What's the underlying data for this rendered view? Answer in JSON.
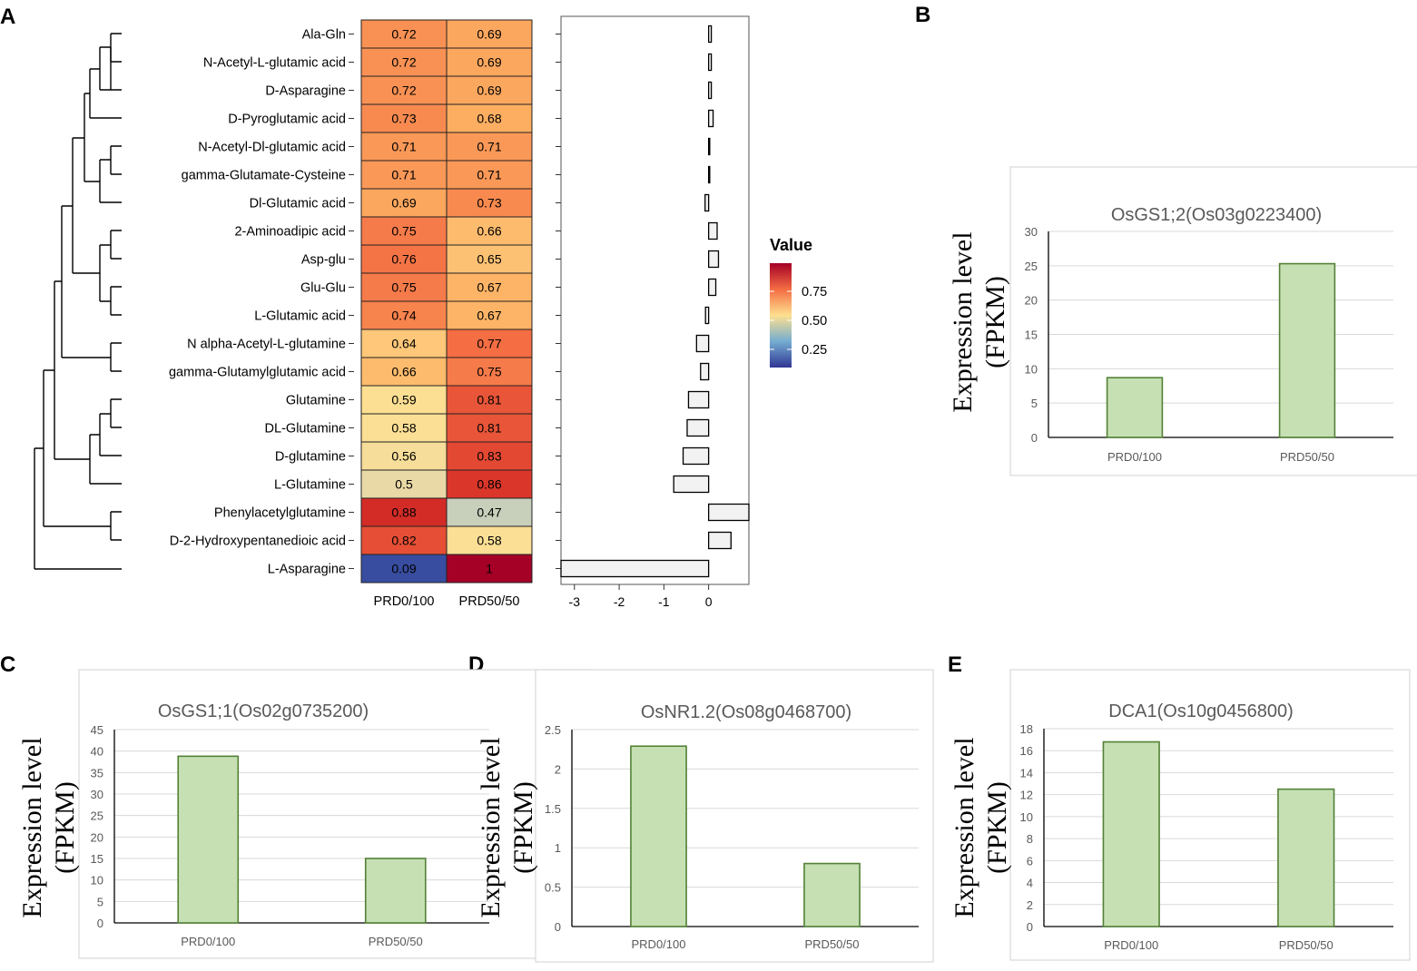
{
  "panel_letters": [
    "A",
    "B",
    "C",
    "D",
    "E"
  ],
  "chart_data": [
    {
      "type": "heatmap",
      "panel": "A",
      "rows": [
        "Ala-Gln",
        "N-Acetyl-L-glutamic acid",
        "D-Asparagine",
        "D-Pyroglutamic acid",
        "N-Acetyl-Dl-glutamic acid",
        "gamma-Glutamate-Cysteine",
        "Dl-Glutamic acid",
        "2-Aminoadipic acid",
        "Asp-glu",
        "Glu-Glu",
        "L-Glutamic acid",
        "N alpha-Acetyl-L-glutamine",
        "gamma-Glutamylglutamic acid",
        "Glutamine",
        "DL-Glutamine",
        "D-glutamine",
        "L-Glutamine",
        "Phenylacetylglutamine",
        "D-2-Hydroxypentanedioic acid",
        "L-Asparagine"
      ],
      "columns": [
        "PRD0/100",
        "PRD50/50"
      ],
      "values": [
        [
          "0.72",
          "0.69"
        ],
        [
          "0.72",
          "0.69"
        ],
        [
          "0.72",
          "0.69"
        ],
        [
          "0.73",
          "0.68"
        ],
        [
          "0.71",
          "0.71"
        ],
        [
          "0.71",
          "0.71"
        ],
        [
          "0.69",
          "0.73"
        ],
        [
          "0.75",
          "0.66"
        ],
        [
          "0.76",
          "0.65"
        ],
        [
          "0.75",
          "0.67"
        ],
        [
          "0.74",
          "0.67"
        ],
        [
          "0.64",
          "0.77"
        ],
        [
          "0.66",
          "0.75"
        ],
        [
          "0.59",
          "0.81"
        ],
        [
          "0.58",
          "0.81"
        ],
        [
          "0.56",
          "0.83"
        ],
        [
          "0.5",
          "0.86"
        ],
        [
          "0.88",
          "0.47"
        ],
        [
          "0.82",
          "0.58"
        ],
        [
          "0.09",
          "1"
        ]
      ],
      "legend": {
        "title": "Value",
        "ticks": [
          "0.75",
          "0.50",
          "0.25"
        ],
        "colors": [
          "#a50026",
          "#d73027",
          "#f46d43",
          "#fdae61",
          "#fee090",
          "#e9d9a6",
          "#91bfdb",
          "#4575b4",
          "#313695"
        ]
      },
      "fold_change": {
        "values": [
          0.06,
          0.06,
          0.06,
          0.1,
          0.0,
          0.0,
          -0.08,
          0.19,
          0.22,
          0.16,
          -0.07,
          -0.27,
          -0.18,
          -0.45,
          -0.48,
          -0.57,
          -0.78,
          0.9,
          0.5,
          -3.3
        ],
        "xlim": [
          -3.3,
          0.9
        ],
        "xticks": [
          "-3",
          "-2",
          "-1",
          "0"
        ]
      }
    },
    {
      "type": "bar",
      "panel": "B",
      "title": "OsGS1;2(Os03g0223400)",
      "ylabel_lines": [
        "Expression level",
        "(FPKM)"
      ],
      "categories": [
        "PRD0/100",
        "PRD50/50"
      ],
      "values": [
        8.7,
        25.3
      ],
      "ylim": [
        0,
        30
      ],
      "yticks": [
        "0",
        "5",
        "10",
        "15",
        "20",
        "25",
        "30"
      ]
    },
    {
      "type": "bar",
      "panel": "C",
      "title": "OsGS1;1(Os02g0735200)",
      "ylabel_lines": [
        "Expression level",
        "(FPKM)"
      ],
      "categories": [
        "PRD0/100",
        "PRD50/50"
      ],
      "values": [
        38.8,
        15.0
      ],
      "ylim": [
        0,
        45
      ],
      "yticks": [
        "0",
        "5",
        "10",
        "15",
        "20",
        "25",
        "30",
        "35",
        "40",
        "45"
      ]
    },
    {
      "type": "bar",
      "panel": "D",
      "title": "OsNR1.2(Os08g0468700)",
      "ylabel_lines": [
        "Expression level",
        "(FPKM)"
      ],
      "categories": [
        "PRD0/100",
        "PRD50/50"
      ],
      "values": [
        2.29,
        0.8
      ],
      "ylim": [
        0,
        2.5
      ],
      "yticks": [
        "0",
        "0.5",
        "1",
        "1.5",
        "2",
        "2.5"
      ]
    },
    {
      "type": "bar",
      "panel": "E",
      "title": "DCA1(Os10g0456800)",
      "ylabel_lines": [
        "Expression level",
        "(FPKM)"
      ],
      "categories": [
        "PRD0/100",
        "PRD50/50"
      ],
      "values": [
        16.8,
        12.5
      ],
      "ylim": [
        0,
        18
      ],
      "yticks": [
        "0",
        "2",
        "4",
        "6",
        "8",
        "10",
        "12",
        "14",
        "16",
        "18"
      ]
    }
  ],
  "colors": {
    "bar_fill": "#c6e0b4",
    "bar_stroke": "#538135",
    "grid": "#d9d9d9",
    "panel_border": "#d9d9d9",
    "fold_bar_fill": "#f2f2f2"
  }
}
